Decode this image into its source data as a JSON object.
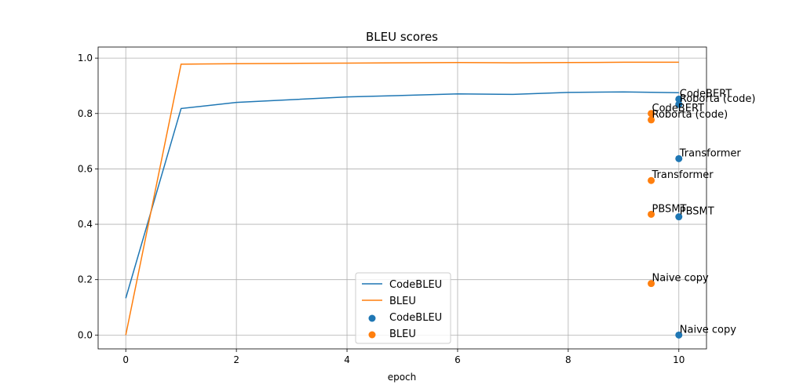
{
  "chart_data": {
    "type": "line",
    "title": "BLEU scores",
    "xlabel": "epoch",
    "ylabel": "",
    "xlim": [
      -0.5,
      10.5
    ],
    "ylim": [
      -0.05,
      1.04
    ],
    "xticks": [
      "0",
      "2",
      "4",
      "6",
      "8",
      "10"
    ],
    "yticks": [
      "0.0",
      "0.2",
      "0.4",
      "0.6",
      "0.8",
      "1.0"
    ],
    "grid": true,
    "legend_position": "lower center",
    "colors": {
      "codebleu": "#1f77b4",
      "bleu": "#ff7f0e"
    },
    "x": [
      0,
      1,
      2,
      3,
      4,
      5,
      6,
      7,
      8,
      9,
      10
    ],
    "series": [
      {
        "name": "CodeBLEU",
        "type": "line",
        "color": "#1f77b4",
        "values": [
          0.133,
          0.818,
          0.84,
          0.85,
          0.86,
          0.865,
          0.871,
          0.869,
          0.876,
          0.878,
          0.875
        ]
      },
      {
        "name": "BLEU",
        "type": "line",
        "color": "#ff7f0e",
        "values": [
          0.0,
          0.978,
          0.98,
          0.981,
          0.982,
          0.983,
          0.984,
          0.983,
          0.984,
          0.985,
          0.985
        ]
      }
    ],
    "scatter": [
      {
        "name": "CodeBLEU",
        "color": "#1f77b4",
        "points": [
          {
            "x": 10,
            "y": 0.852,
            "label": "CodeBERT"
          },
          {
            "x": 10,
            "y": 0.833,
            "label": "Roborta (code)"
          },
          {
            "x": 10,
            "y": 0.637,
            "label": "Transformer"
          },
          {
            "x": 10,
            "y": 0.427,
            "label": "PBSMT"
          },
          {
            "x": 10,
            "y": 0.0,
            "label": "Naive copy"
          }
        ]
      },
      {
        "name": "BLEU",
        "color": "#ff7f0e",
        "points": [
          {
            "x": 9.5,
            "y": 0.8,
            "label": "CodeBERT"
          },
          {
            "x": 9.5,
            "y": 0.777,
            "label": "Roborta (code)"
          },
          {
            "x": 9.5,
            "y": 0.558,
            "label": "Transformer"
          },
          {
            "x": 9.5,
            "y": 0.436,
            "label": "PBSMT"
          },
          {
            "x": 9.5,
            "y": 0.186,
            "label": "Naive copy"
          }
        ]
      }
    ]
  }
}
